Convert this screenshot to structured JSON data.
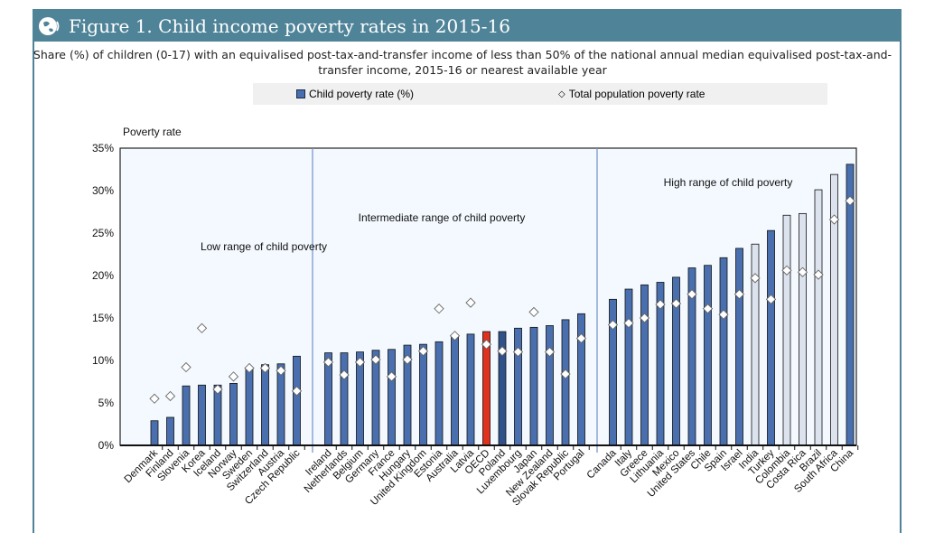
{
  "header": {
    "title": "Figure 1. Child income poverty rates in 2015-16",
    "logo": "oecd-globe-logo"
  },
  "subtitle": "Share (%) of children (0-17) with an equivalised post-tax-and-transfer income of less than 50% of the national annual median equivalised post-tax-and-transfer income, 2015-16 or nearest available year",
  "colors": {
    "header": "#4f8398",
    "bar": "#4a6fae",
    "oecd": "#e0301e",
    "poland": "#30528a",
    "nonoecd": "#dde3ee",
    "plot_bg": "#f3f9fe"
  },
  "chart_data": {
    "type": "bar",
    "ylabel": "Poverty rate",
    "ylim": [
      0,
      35
    ],
    "yticks": [
      "0%",
      "5%",
      "10%",
      "15%",
      "20%",
      "25%",
      "30%",
      "35%"
    ],
    "legend": {
      "placement": "top",
      "entries": [
        "Child poverty rate (%)",
        "Total population poverty rate"
      ]
    },
    "groups": [
      {
        "label": "Low range of child poverty"
      },
      {
        "label": "Intermediate range of child poverty"
      },
      {
        "label": "High range of  child poverty"
      }
    ],
    "categories": [
      "Denmark",
      "Finland",
      "Slovenia",
      "Korea",
      "Iceland",
      "Norway",
      "Sweden",
      "Switzerland",
      "Austria",
      "Czech Republic",
      "Ireland",
      "Netherlands",
      "Belgium",
      "Germany",
      "France",
      "Hungary",
      "United Kingdom",
      "Estonia",
      "Australia",
      "Latvia",
      "OECD",
      "Poland",
      "Luxembourg",
      "Japan",
      "New Zealand",
      "Slovak Republic",
      "Portugal",
      "Canada",
      "Italy",
      "Greece",
      "Lithuania",
      "Mexico",
      "United States",
      "Chile",
      "Spain",
      "Israel",
      "India",
      "Turkey",
      "Colombia",
      "Costa Rica",
      "Brazil",
      "South Africa",
      "China"
    ],
    "group_index": [
      0,
      0,
      0,
      0,
      0,
      0,
      0,
      0,
      0,
      0,
      1,
      1,
      1,
      1,
      1,
      1,
      1,
      1,
      1,
      1,
      1,
      1,
      1,
      1,
      1,
      1,
      1,
      2,
      2,
      2,
      2,
      2,
      2,
      2,
      2,
      2,
      2,
      2,
      2,
      2,
      2,
      2,
      2
    ],
    "series": [
      {
        "name": "Child poverty rate (%)",
        "values": [
          2.9,
          3.3,
          7.0,
          7.1,
          7.1,
          7.3,
          9.0,
          9.5,
          9.6,
          10.5,
          10.9,
          10.9,
          11.0,
          11.2,
          11.3,
          11.8,
          11.9,
          12.2,
          13.0,
          13.1,
          13.4,
          13.4,
          13.8,
          13.9,
          14.1,
          14.8,
          15.5,
          17.2,
          18.4,
          18.9,
          19.2,
          19.8,
          20.9,
          21.2,
          22.1,
          23.2,
          23.7,
          25.3,
          27.1,
          27.3,
          30.1,
          31.9,
          33.1
        ]
      },
      {
        "name": "Total population poverty rate",
        "values": [
          5.5,
          5.8,
          9.2,
          13.8,
          6.6,
          8.1,
          9.1,
          9.1,
          8.8,
          6.4,
          9.8,
          8.3,
          9.8,
          10.1,
          8.1,
          10.1,
          11.1,
          16.1,
          12.9,
          16.8,
          11.9,
          11.1,
          11.0,
          15.7,
          11.0,
          8.4,
          12.6,
          14.2,
          14.4,
          15.0,
          16.6,
          16.7,
          17.8,
          16.1,
          15.4,
          17.8,
          19.7,
          17.2,
          20.6,
          20.4,
          20.1,
          26.6,
          28.8
        ]
      }
    ],
    "non_oecd": [
      "India",
      "Colombia",
      "Costa Rica",
      "Brazil",
      "South Africa"
    ]
  }
}
